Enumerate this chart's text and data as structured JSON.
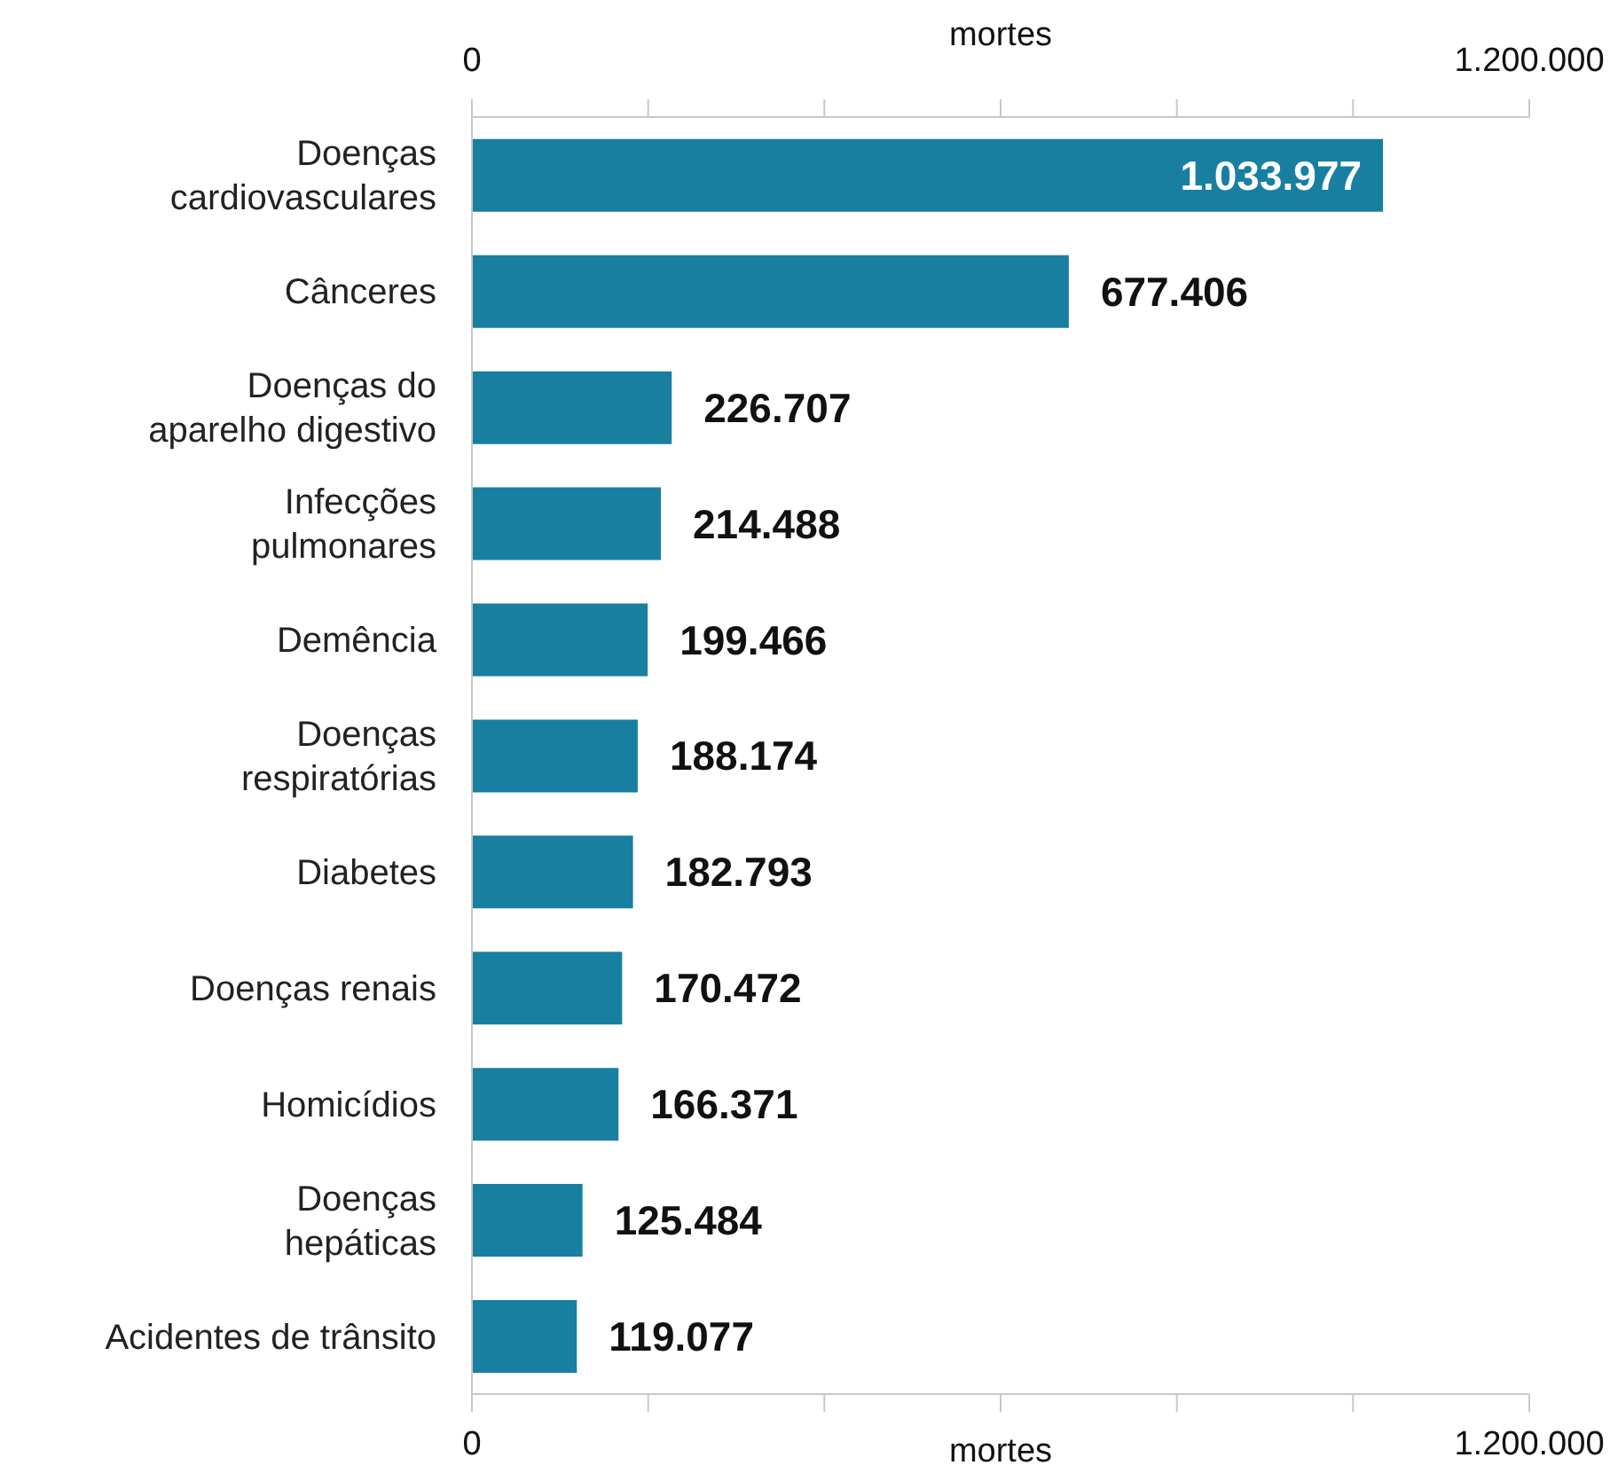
{
  "chart_data": {
    "type": "bar",
    "orientation": "horizontal",
    "xlabel": "mortes",
    "x2label": "mortes",
    "categories": [
      "Doenças\ncardiovasculares",
      "Cânceres",
      "Doenças do\naparelho digestivo",
      "Infecções\npulmonares",
      "Demência",
      "Doenças\nrespiratórias",
      "Diabetes",
      "Doenças renais",
      "Homicídios",
      "Doenças\nhepáticas",
      "Acidentes de trânsito"
    ],
    "values": [
      1033977,
      677406,
      226707,
      214488,
      199466,
      188174,
      182793,
      170472,
      166371,
      125484,
      119077
    ],
    "value_labels": [
      "1.033.977",
      "677.406",
      "226.707",
      "214.488",
      "199.466",
      "188.174",
      "182.793",
      "170.472",
      "166.371",
      "125.484",
      "119.077"
    ],
    "color": "#187fa1",
    "xlim": [
      0,
      1200000
    ],
    "xticks": [
      0,
      {
        "value": 200000,
        "label": null
      },
      {
        "value": 400000,
        "label": null
      },
      {
        "value": 600000,
        "label": null
      },
      {
        "value": 800000,
        "label": null
      },
      {
        "value": 1000000,
        "label": null
      },
      {
        "value": 1200000,
        "label": "1.200.000"
      }
    ],
    "x2lim": [
      0,
      1200000
    ],
    "x2ticks": [
      0,
      {
        "value": 200000,
        "label": null
      },
      {
        "value": 400000,
        "label": null
      },
      {
        "value": 600000,
        "label": null
      },
      {
        "value": 800000,
        "label": null
      },
      {
        "value": 1000000,
        "label": null
      },
      {
        "value": 1200000,
        "label": "1.200.000"
      }
    ],
    "grid": false,
    "legend": false
  }
}
